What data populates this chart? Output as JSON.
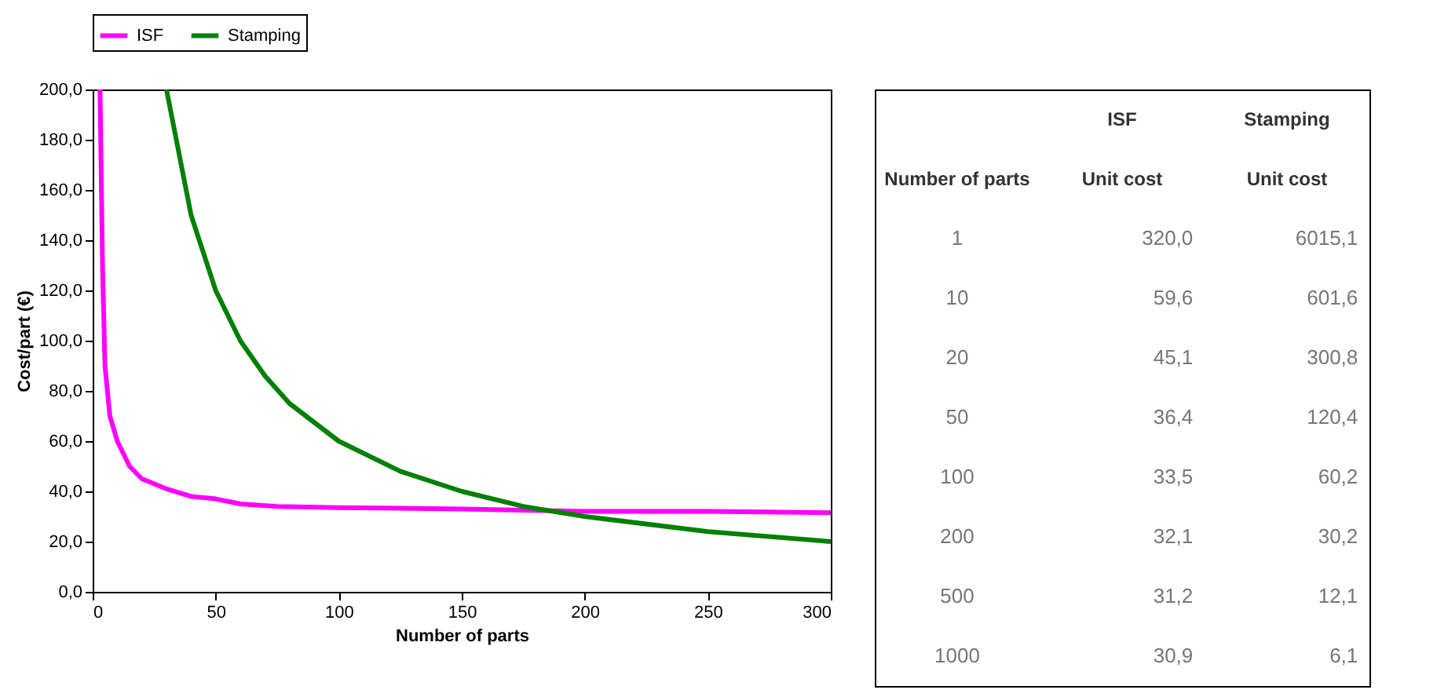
{
  "chart_data": [
    {
      "type": "line",
      "xlabel": "Number of parts",
      "ylabel": "Cost/part (€)",
      "legend": "top",
      "grid": false,
      "xlim": [
        0,
        300
      ],
      "xticks": [
        0,
        50,
        100,
        150,
        200,
        250,
        300
      ],
      "ylim": [
        0,
        200
      ],
      "yticks": [
        {
          "value": 0,
          "label": "0,0"
        },
        {
          "value": 20,
          "label": "20,0"
        },
        {
          "value": 40,
          "label": "40,0"
        },
        {
          "value": 60,
          "label": "60,0"
        },
        {
          "value": 80,
          "label": "80,0"
        },
        {
          "value": 100,
          "label": "100,0"
        },
        {
          "value": 120,
          "label": "120,0"
        },
        {
          "value": 140,
          "label": "140,0"
        },
        {
          "value": 160,
          "label": "160,0"
        },
        {
          "value": 180,
          "label": "180,0"
        },
        {
          "value": 200,
          "label": "200,0"
        }
      ],
      "series": [
        {
          "name": "ISF",
          "color": "#ff00ff",
          "x": [
            3,
            4,
            5,
            7,
            10,
            15,
            20,
            30,
            40,
            50,
            60,
            75,
            100,
            150,
            200,
            250,
            300
          ],
          "values": [
            200,
            130,
            90,
            70,
            60,
            50,
            45,
            41,
            38,
            37,
            35,
            34,
            33.5,
            33,
            32,
            32,
            31.5
          ]
        },
        {
          "name": "Stamping",
          "color": "#008000",
          "x": [
            30,
            40,
            50,
            60,
            70,
            80,
            100,
            125,
            150,
            175,
            200,
            250,
            300
          ],
          "values": [
            200,
            150,
            120,
            100,
            86,
            75,
            60,
            48,
            40,
            34,
            30,
            24,
            20
          ]
        }
      ]
    },
    {
      "type": "other",
      "xlabel": "Number of parts",
      "ylabel": "Unit cost",
      "categories": [
        "1",
        "10",
        "20",
        "50",
        "100",
        "200",
        "500",
        "1000"
      ],
      "series": [
        {
          "name": "ISF",
          "values": [
            320.0,
            59.6,
            45.1,
            36.4,
            33.5,
            32.1,
            31.2,
            30.9
          ],
          "value_labels": [
            "320,0",
            "59,6",
            "45,1",
            "36,4",
            "33,5",
            "32,1",
            "31,2",
            "30,9"
          ]
        },
        {
          "name": "Stamping",
          "values": [
            6015.1,
            601.6,
            300.8,
            120.4,
            60.2,
            30.2,
            12.1,
            6.1
          ],
          "value_labels": [
            "6015,1",
            "601,6",
            "300,8",
            "120,4",
            "60,2",
            "30,2",
            "12,1",
            "6,1"
          ]
        }
      ]
    }
  ]
}
